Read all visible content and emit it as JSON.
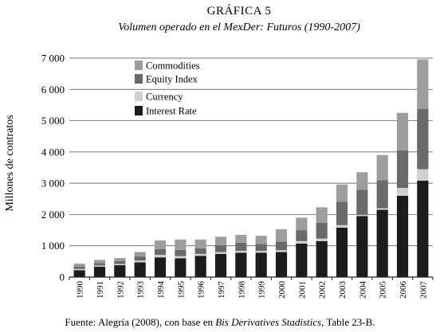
{
  "chart_data": {
    "type": "bar",
    "stacked": true,
    "title": "GRÁFICA 5",
    "subtitle": "Volumen operado en el MexDer: Futuros (1990-2007)",
    "ylabel": "Millones de contratos",
    "xlabel": "",
    "ylim": [
      0,
      7000
    ],
    "yticks": [
      0,
      1000,
      2000,
      3000,
      4000,
      5000,
      6000,
      7000
    ],
    "ytick_labels": [
      "0",
      "1 000",
      "2 000",
      "3 000",
      "4 000",
      "5 000",
      "6 000",
      "7 000"
    ],
    "grid": true,
    "legend_position": "top-left",
    "categories": [
      "1990",
      "1991",
      "1992",
      "1993",
      "1994",
      "1995",
      "1996",
      "1997",
      "1998",
      "1999",
      "2000",
      "2001",
      "2002",
      "2003",
      "2004",
      "2005",
      "2006",
      "2007"
    ],
    "series": [
      {
        "name": "Interest Rate",
        "color": "#1c1c1c",
        "values": [
          220,
          330,
          380,
          470,
          630,
          600,
          680,
          740,
          780,
          780,
          800,
          1070,
          1150,
          1580,
          1950,
          2150,
          2600,
          3080
        ]
      },
      {
        "name": "Currency",
        "color": "#cfcfcf",
        "values": [
          40,
          40,
          40,
          60,
          80,
          70,
          60,
          60,
          60,
          60,
          60,
          80,
          80,
          80,
          40,
          50,
          250,
          370
        ]
      },
      {
        "name": "Equity Index",
        "color": "#6a6a6a",
        "values": [
          70,
          80,
          90,
          130,
          180,
          200,
          180,
          220,
          260,
          220,
          270,
          350,
          500,
          750,
          800,
          900,
          1200,
          1930
        ]
      },
      {
        "name": "Commodities",
        "color": "#9d9d9d",
        "values": [
          100,
          100,
          100,
          140,
          280,
          330,
          280,
          270,
          250,
          260,
          400,
          400,
          500,
          550,
          560,
          800,
          1200,
          1580
        ]
      }
    ],
    "legend_order": [
      "Commodities",
      "Equity Index",
      "Currency",
      "Interest Rate"
    ],
    "source_prefix": "Fuente: Alegría (2008), con base en ",
    "source_italic": "Bis Derivatives Stadistics",
    "source_suffix": ", Table 23-B."
  }
}
